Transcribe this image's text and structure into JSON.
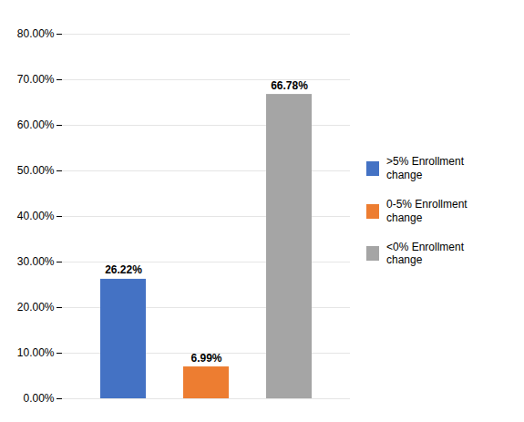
{
  "chart_data": {
    "type": "bar",
    "categories": [
      ">5% Enrollment\nchange",
      "0-5% Enrollment\nchange",
      "<0% Enrollment\nchange"
    ],
    "values": [
      26.22,
      6.99,
      66.78
    ],
    "value_labels": [
      "26.22%",
      "6.99%",
      "66.78%"
    ],
    "data_labels": true,
    "colors": [
      "#4472C4",
      "#ED7D31",
      "#A5A5A5"
    ],
    "ylim": [
      0,
      80
    ],
    "yticks": [
      {
        "value": 0,
        "label": "0.00%"
      },
      {
        "value": 10,
        "label": "10.00%"
      },
      {
        "value": 20,
        "label": "20.00%"
      },
      {
        "value": 30,
        "label": "30.00%"
      },
      {
        "value": 40,
        "label": "40.00%"
      },
      {
        "value": 50,
        "label": "50.00%"
      },
      {
        "value": 60,
        "label": "60.00%"
      },
      {
        "value": 70,
        "label": "70.00%"
      },
      {
        "value": 80,
        "label": "80.00%"
      }
    ],
    "grid": true,
    "legend": "right",
    "tick_labels": "y"
  }
}
